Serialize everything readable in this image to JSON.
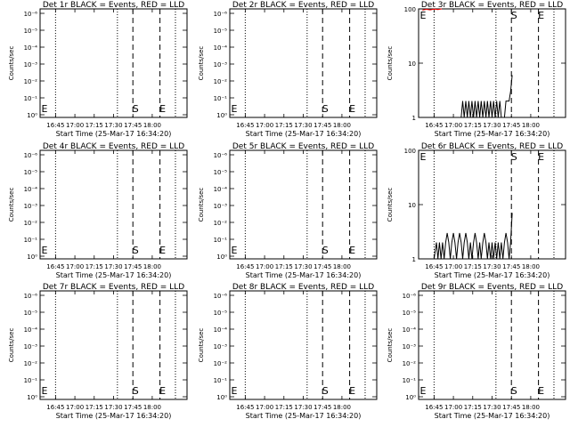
{
  "chart_data": [
    {
      "type": "line",
      "title": "Det 1r BLACK = Events, RED = LLD",
      "xlabel": "Start Time (25-Mar-17 16:34:20)",
      "ylabel": "Counts/sec",
      "yscale": "log",
      "ylim": [
        0.9,
        1e-06
      ],
      "yticks": [
        "10⁰",
        "10⁻¹",
        "10⁻²",
        "10⁻³",
        "10⁻⁴",
        "10⁻⁵",
        "10⁻⁶"
      ],
      "xticks": [
        "16:45",
        "17:00",
        "17:15",
        "17:30",
        "17:45",
        "18:00"
      ],
      "markers": [
        "E",
        "S",
        "E"
      ],
      "series": []
    },
    {
      "type": "line",
      "title": "Det 2r BLACK = Events, RED = LLD",
      "xlabel": "Start Time (25-Mar-17 16:34:20)",
      "ylabel": "Counts/sec",
      "yscale": "log",
      "ylim": [
        0.9,
        1e-06
      ],
      "yticks": [
        "10⁰",
        "10⁻¹",
        "10⁻²",
        "10⁻³",
        "10⁻⁴",
        "10⁻⁵",
        "10⁻⁶"
      ],
      "xticks": [
        "16:45",
        "17:00",
        "17:15",
        "17:30",
        "17:45",
        "18:00"
      ],
      "markers": [
        "E",
        "S",
        "E"
      ],
      "series": []
    },
    {
      "type": "line",
      "title": "Det 3r BLACK = Events, RED = LLD",
      "xlabel": "Start Time (25-Mar-17 16:34:20)",
      "ylabel": "Counts/sec",
      "yscale": "log",
      "ylim": [
        1,
        100
      ],
      "yticks": [
        "1",
        "10",
        "100"
      ],
      "xticks": [
        "16:45",
        "17:00",
        "17:15",
        "17:30",
        "17:45",
        "18:00"
      ],
      "markers": [
        "E",
        "S",
        "E"
      ],
      "series": [
        {
          "color": "#000000",
          "points": [
            [
              16.7,
              1
            ],
            [
              16.75,
              1
            ],
            [
              17.1,
              1
            ],
            [
              17.12,
              2
            ],
            [
              17.14,
              1
            ],
            [
              17.16,
              2
            ],
            [
              17.18,
              1
            ],
            [
              17.2,
              2
            ],
            [
              17.22,
              1
            ],
            [
              17.24,
              2
            ],
            [
              17.26,
              1
            ],
            [
              17.28,
              2
            ],
            [
              17.3,
              1
            ],
            [
              17.32,
              2
            ],
            [
              17.34,
              1
            ],
            [
              17.36,
              2
            ],
            [
              17.38,
              1
            ],
            [
              17.4,
              2
            ],
            [
              17.42,
              1
            ],
            [
              17.44,
              2
            ],
            [
              17.46,
              1
            ],
            [
              17.48,
              2
            ],
            [
              17.5,
              1
            ],
            [
              17.52,
              2
            ],
            [
              17.54,
              1
            ],
            [
              17.56,
              2
            ],
            [
              17.58,
              1
            ],
            [
              17.6,
              2
            ],
            [
              17.62,
              1
            ],
            [
              17.64,
              1
            ],
            [
              17.66,
              1
            ],
            [
              17.68,
              2
            ],
            [
              17.7,
              2
            ],
            [
              17.72,
              2
            ],
            [
              17.74,
              3
            ],
            [
              17.76,
              6
            ]
          ]
        },
        {
          "color": "#ff0000",
          "points": [
            [
              16.6,
              95
            ],
            [
              16.65,
              98
            ],
            [
              16.7,
              96
            ],
            [
              16.75,
              99
            ],
            [
              16.8,
              97
            ],
            [
              16.85,
              100
            ]
          ]
        }
      ]
    },
    {
      "type": "line",
      "title": "Det 4r BLACK = Events, RED = LLD",
      "xlabel": "Start Time (25-Mar-17 16:34:20)",
      "ylabel": "Counts/sec",
      "yscale": "log",
      "ylim": [
        0.9,
        1e-06
      ],
      "yticks": [
        "10⁰",
        "10⁻¹",
        "10⁻²",
        "10⁻³",
        "10⁻⁴",
        "10⁻⁵",
        "10⁻⁶"
      ],
      "xticks": [
        "16:45",
        "17:00",
        "17:15",
        "17:30",
        "17:45",
        "18:00"
      ],
      "markers": [
        "E",
        "S",
        "E"
      ],
      "series": []
    },
    {
      "type": "line",
      "title": "Det 5r BLACK = Events, RED = LLD",
      "xlabel": "Start Time (25-Mar-17 16:34:20)",
      "ylabel": "Counts/sec",
      "yscale": "log",
      "ylim": [
        0.9,
        1e-06
      ],
      "yticks": [
        "10⁰",
        "10⁻¹",
        "10⁻²",
        "10⁻³",
        "10⁻⁴",
        "10⁻⁵",
        "10⁻⁶"
      ],
      "xticks": [
        "16:45",
        "17:00",
        "17:15",
        "17:30",
        "17:45",
        "18:00"
      ],
      "markers": [
        "E",
        "S",
        "E"
      ],
      "series": []
    },
    {
      "type": "line",
      "title": "Det 6r BLACK = Events, RED = LLD",
      "xlabel": "Start Time (25-Mar-17 16:34:20)",
      "ylabel": "Counts/sec",
      "yscale": "log",
      "ylim": [
        1,
        100
      ],
      "yticks": [
        "1",
        "10",
        "100"
      ],
      "xticks": [
        "16:45",
        "17:00",
        "17:15",
        "17:30",
        "17:45",
        "18:00"
      ],
      "markers": [
        "E",
        "S",
        "E"
      ],
      "series": [
        {
          "color": "#000000",
          "points": [
            [
              16.7,
              1
            ],
            [
              16.75,
              1
            ],
            [
              16.78,
              2
            ],
            [
              16.8,
              1
            ],
            [
              16.82,
              2
            ],
            [
              16.84,
              1
            ],
            [
              16.86,
              2
            ],
            [
              16.88,
              1
            ],
            [
              16.9,
              2
            ],
            [
              16.92,
              3
            ],
            [
              16.94,
              2
            ],
            [
              16.96,
              1
            ],
            [
              16.98,
              2
            ],
            [
              17.0,
              3
            ],
            [
              17.02,
              2
            ],
            [
              17.04,
              1
            ],
            [
              17.06,
              2
            ],
            [
              17.08,
              3
            ],
            [
              17.1,
              2
            ],
            [
              17.12,
              1
            ],
            [
              17.14,
              2
            ],
            [
              17.16,
              3
            ],
            [
              17.18,
              2
            ],
            [
              17.2,
              1
            ],
            [
              17.22,
              2
            ],
            [
              17.24,
              1
            ],
            [
              17.26,
              2
            ],
            [
              17.28,
              3
            ],
            [
              17.3,
              2
            ],
            [
              17.32,
              1
            ],
            [
              17.34,
              2
            ],
            [
              17.36,
              1
            ],
            [
              17.38,
              2
            ],
            [
              17.4,
              3
            ],
            [
              17.42,
              2
            ],
            [
              17.44,
              1
            ],
            [
              17.46,
              2
            ],
            [
              17.48,
              1
            ],
            [
              17.5,
              2
            ],
            [
              17.52,
              1
            ],
            [
              17.54,
              2
            ],
            [
              17.56,
              1
            ],
            [
              17.58,
              2
            ],
            [
              17.6,
              1
            ],
            [
              17.62,
              2
            ],
            [
              17.64,
              1
            ],
            [
              17.66,
              2
            ],
            [
              17.68,
              3
            ],
            [
              17.7,
              2
            ],
            [
              17.72,
              1
            ],
            [
              17.74,
              2
            ],
            [
              17.76,
              7
            ]
          ]
        }
      ]
    },
    {
      "type": "line",
      "title": "Det 7r BLACK = Events, RED = LLD",
      "xlabel": "Start Time (25-Mar-17 16:34:20)",
      "ylabel": "Counts/sec",
      "yscale": "log",
      "ylim": [
        0.9,
        1e-06
      ],
      "yticks": [
        "10⁰",
        "10⁻¹",
        "10⁻²",
        "10⁻³",
        "10⁻⁴",
        "10⁻⁵",
        "10⁻⁶"
      ],
      "xticks": [
        "16:45",
        "17:00",
        "17:15",
        "17:30",
        "17:45",
        "18:00"
      ],
      "markers": [
        "E",
        "S",
        "E"
      ],
      "series": []
    },
    {
      "type": "line",
      "title": "Det 8r BLACK = Events, RED = LLD",
      "xlabel": "Start Time (25-Mar-17 16:34:20)",
      "ylabel": "Counts/sec",
      "yscale": "log",
      "ylim": [
        0.9,
        1e-06
      ],
      "yticks": [
        "10⁰",
        "10⁻¹",
        "10⁻²",
        "10⁻³",
        "10⁻⁴",
        "10⁻⁵",
        "10⁻⁶"
      ],
      "xticks": [
        "16:45",
        "17:00",
        "17:15",
        "17:30",
        "17:45",
        "18:00"
      ],
      "markers": [
        "E",
        "S",
        "E"
      ],
      "series": []
    },
    {
      "type": "line",
      "title": "Det 9r BLACK = Events, RED = LLD",
      "xlabel": "Start Time (25-Mar-17 16:34:20)",
      "ylabel": "Counts/sec",
      "yscale": "log",
      "ylim": [
        0.9,
        1e-06
      ],
      "yticks": [
        "10⁰",
        "10⁻¹",
        "10⁻²",
        "10⁻³",
        "10⁻⁴",
        "10⁻⁵",
        "10⁻⁶"
      ],
      "xticks": [
        "16:45",
        "17:00",
        "17:15",
        "17:30",
        "17:45",
        "18:00"
      ],
      "markers": [
        "E",
        "S",
        "E"
      ],
      "series": []
    }
  ]
}
